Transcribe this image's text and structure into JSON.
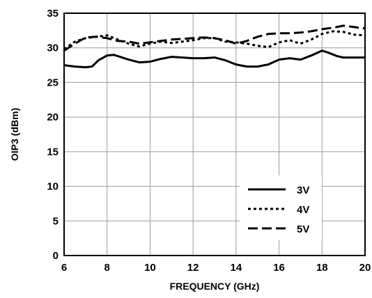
{
  "chart_data": {
    "type": "line",
    "xlabel": "FREQUENCY (GHz)",
    "ylabel": "OIP3 (dBm)",
    "xlim": [
      6,
      20
    ],
    "ylim": [
      0,
      35
    ],
    "x_ticks": [
      "6",
      "8",
      "10",
      "12",
      "14",
      "16",
      "18",
      "20"
    ],
    "y_ticks": [
      "0",
      "5",
      "10",
      "15",
      "20",
      "25",
      "30",
      "35"
    ],
    "grid": true,
    "legend_position": "bottom-right",
    "series": [
      {
        "name": "3V",
        "style": "solid",
        "x": [
          6,
          6.5,
          7,
          7.3,
          7.6,
          8,
          8.3,
          8.6,
          9,
          9.5,
          10,
          10.5,
          11,
          11.5,
          12,
          12.5,
          13,
          13.5,
          14,
          14.5,
          15,
          15.5,
          16,
          16.5,
          17,
          17.5,
          18,
          18.3,
          18.7,
          19,
          19.5,
          20
        ],
        "y": [
          27.5,
          27.3,
          27.2,
          27.3,
          28.2,
          28.9,
          29.0,
          28.7,
          28.3,
          27.9,
          28.0,
          28.4,
          28.7,
          28.6,
          28.5,
          28.5,
          28.6,
          28.2,
          27.6,
          27.3,
          27.3,
          27.6,
          28.3,
          28.5,
          28.3,
          28.9,
          29.6,
          29.3,
          28.8,
          28.6,
          28.6,
          28.6
        ]
      },
      {
        "name": "4V",
        "style": "dotted",
        "x": [
          6,
          6.5,
          7,
          7.5,
          8,
          8.5,
          9,
          9.5,
          10,
          10.5,
          11,
          11.5,
          12,
          12.5,
          13,
          13.5,
          14,
          14.5,
          15,
          15.5,
          16,
          16.5,
          17,
          17.5,
          18,
          18.5,
          19,
          19.5,
          20
        ],
        "y": [
          29.8,
          30.9,
          31.4,
          31.6,
          31.8,
          31.2,
          30.6,
          30.2,
          30.6,
          30.9,
          30.7,
          30.9,
          31.1,
          31.4,
          31.4,
          30.9,
          30.8,
          30.6,
          30.3,
          30.1,
          30.8,
          31.1,
          30.6,
          31.2,
          32.0,
          32.4,
          32.3,
          31.9,
          31.8
        ]
      },
      {
        "name": "5V",
        "style": "dashed",
        "x": [
          6,
          6.5,
          7,
          7.5,
          8,
          8.5,
          9,
          9.5,
          10,
          10.5,
          11,
          11.5,
          12,
          12.5,
          13,
          13.5,
          14,
          14.5,
          15,
          15.5,
          16,
          16.5,
          17,
          17.5,
          18,
          18.5,
          19,
          19.5,
          20
        ],
        "y": [
          29.6,
          30.6,
          31.5,
          31.6,
          31.4,
          31.0,
          30.9,
          30.6,
          30.8,
          31.0,
          31.2,
          31.3,
          31.4,
          31.5,
          31.4,
          31.1,
          30.6,
          31.0,
          31.6,
          32.0,
          32.1,
          32.1,
          32.2,
          32.4,
          32.7,
          32.9,
          33.2,
          33.0,
          32.8
        ]
      }
    ]
  }
}
